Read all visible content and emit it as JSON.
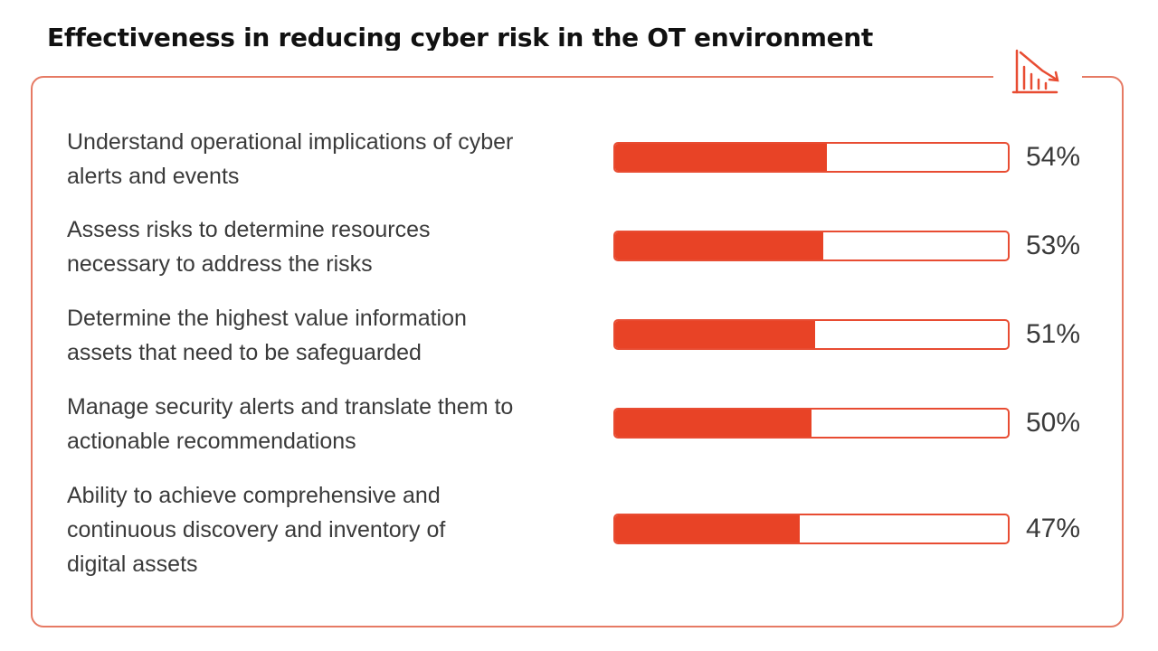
{
  "chart_data": {
    "type": "bar",
    "orientation": "horizontal",
    "title": "Effectiveness in reducing cyber risk in the OT environment",
    "categories": [
      "Understand operational implications of cyber alerts and events",
      "Assess risks to determine resources necessary to address the risks",
      "Determine the highest value information assets that need to be safeguarded",
      "Manage security alerts and translate them to actionable recommendations",
      "Ability to achieve comprehensive and continuous discovery and inventory of digital assets"
    ],
    "category_lines": [
      "Understand operational implications of cyber\nalerts and events",
      "Assess risks to determine resources\nnecessary to address the risks",
      "Determine the highest value information\nassets that need to be safeguarded",
      "Manage security alerts and translate them to\nactionable recommendations",
      "Ability to achieve comprehensive and\ncontinuous discovery and inventory of\ndigital assets"
    ],
    "values": [
      54,
      53,
      51,
      50,
      47
    ],
    "value_labels": [
      "54%",
      "53%",
      "51%",
      "50%",
      "47%"
    ],
    "xlim": [
      0,
      100
    ],
    "unit": "%",
    "grid": false,
    "legend": "none",
    "colors": {
      "bar_fill": "#e84326",
      "bar_border": "#e84c32",
      "frame": "#e67a64",
      "text": "#3a3a3a",
      "title": "#111111"
    }
  },
  "icons": {
    "corner": "declining-bar-chart-icon"
  }
}
